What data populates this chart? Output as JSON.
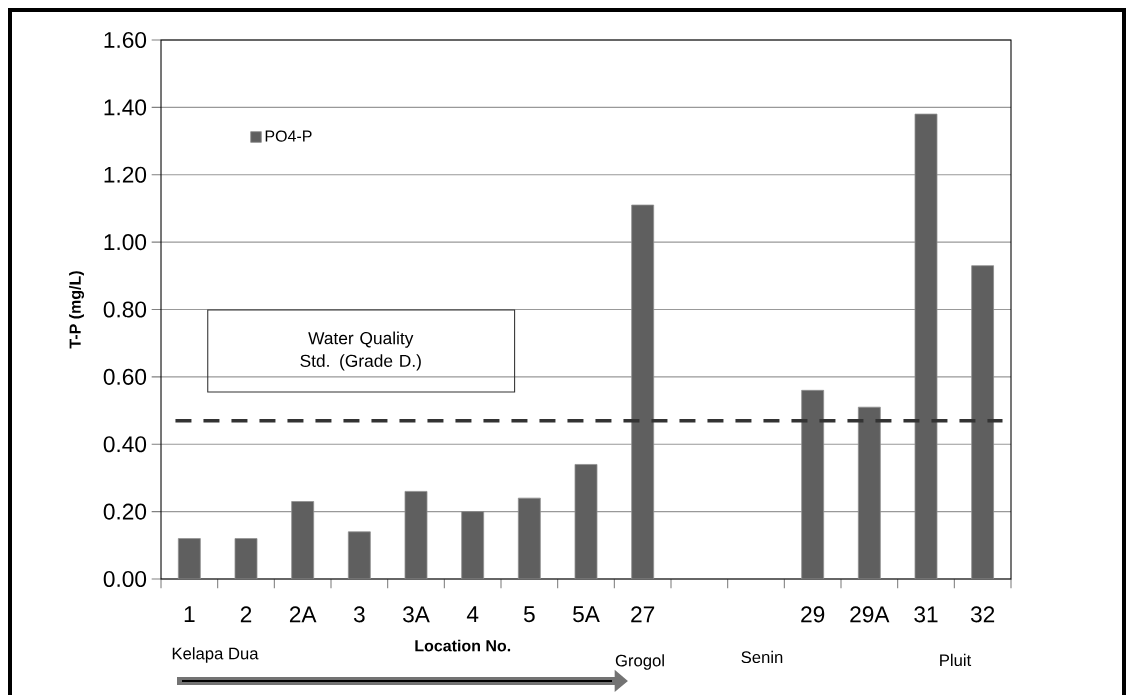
{
  "chart_data": {
    "type": "bar",
    "ylabel": "T-P (mg/L)",
    "xlabel": "Location No.",
    "categories": [
      "1",
      "2",
      "2A",
      "3",
      "3A",
      "4",
      "5",
      "5A",
      "27",
      null,
      null,
      "29",
      "29A",
      "31",
      "32"
    ],
    "series": [
      {
        "name": "PO4-P",
        "color": "#5f5f5f",
        "values": [
          0.12,
          0.12,
          0.23,
          0.14,
          0.26,
          0.2,
          0.24,
          0.34,
          1.11,
          null,
          null,
          0.56,
          0.51,
          1.38,
          0.93
        ]
      }
    ],
    "ylim": [
      0,
      1.6
    ],
    "yticks": [
      {
        "value": 0,
        "label": "0.00"
      },
      {
        "value": 0.2,
        "label": "0.20"
      },
      {
        "value": 0.4,
        "label": "0.40"
      },
      {
        "value": 0.6,
        "label": "0.60"
      },
      {
        "value": 0.8,
        "label": "0.80"
      },
      {
        "value": 1.0,
        "label": "1.00"
      },
      {
        "value": 1.2,
        "label": "1.20"
      },
      {
        "value": 1.4,
        "label": "1.40"
      },
      {
        "value": 1.6,
        "label": "1.60"
      }
    ],
    "ref_lines": [
      {
        "axis": "y",
        "value": 0.47,
        "label": "Water Quality Std. (Grade D.)",
        "color": "#333333",
        "line_style": "dashed"
      }
    ],
    "annotations": [
      "Kelapa Dua",
      "Grogol",
      "Senin",
      "Pluit"
    ],
    "grid": "y",
    "legend": "top left"
  }
}
